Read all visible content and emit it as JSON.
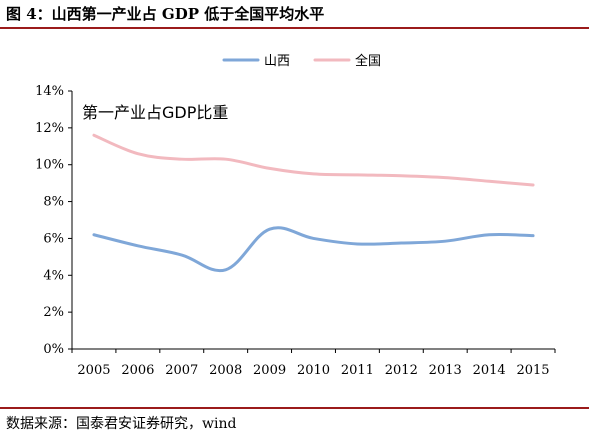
{
  "header": {
    "title": "图 4：山西第一产业占 GDP 低于全国平均水平"
  },
  "footer": {
    "source": "数据来源：国泰君安证券研究，wind"
  },
  "chart_data": {
    "type": "line",
    "title": "第一产业占GDP比重",
    "xlabel": "",
    "ylabel": "",
    "x": [
      "2005",
      "2006",
      "2007",
      "2008",
      "2009",
      "2010",
      "2011",
      "2012",
      "2013",
      "2014",
      "2015"
    ],
    "ylim": [
      0,
      14
    ],
    "y_ticks": [
      "0%",
      "2%",
      "4%",
      "6%",
      "8%",
      "10%",
      "12%",
      "14%"
    ],
    "y_tick_values": [
      0,
      2,
      4,
      6,
      8,
      10,
      12,
      14
    ],
    "grid": false,
    "legend_position": "top-center",
    "series": [
      {
        "name": "山西",
        "color": "#7fa7d8",
        "values": [
          6.2,
          5.6,
          5.1,
          4.3,
          6.5,
          6.0,
          5.7,
          5.75,
          5.85,
          6.2,
          6.15
        ]
      },
      {
        "name": "全国",
        "color": "#f2b9bf",
        "values": [
          11.6,
          10.6,
          10.3,
          10.3,
          9.8,
          9.5,
          9.45,
          9.4,
          9.3,
          9.1,
          8.9
        ]
      }
    ]
  }
}
